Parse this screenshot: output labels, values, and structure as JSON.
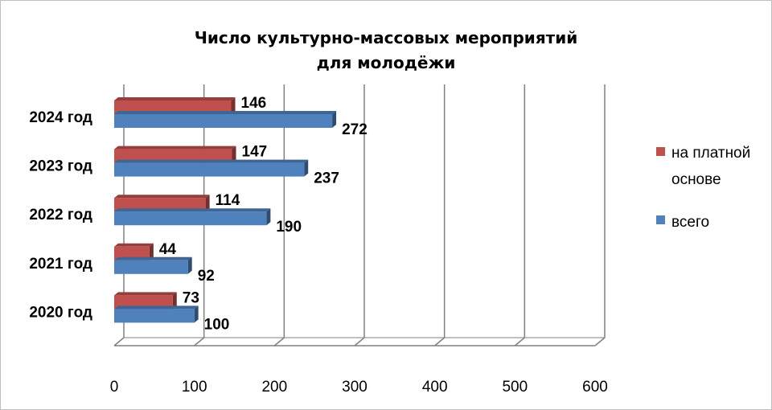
{
  "chart_data": {
    "type": "bar",
    "orientation": "horizontal",
    "title": [
      "Число культурно-массовых мероприятий",
      "для молодёжи"
    ],
    "categories": [
      "2020 год",
      "2021 год",
      "2022 год",
      "2023 год",
      "2024 год"
    ],
    "series": [
      {
        "name": "на платной основе",
        "values": [
          73,
          44,
          114,
          147,
          146
        ]
      },
      {
        "name": "всего",
        "values": [
          100,
          92,
          190,
          237,
          272
        ]
      }
    ],
    "xlim": [
      0,
      600
    ],
    "ticks": [
      0,
      100,
      200,
      300,
      400,
      500,
      600
    ],
    "grid": true,
    "legend": {
      "position": "right",
      "entries": [
        "на платной",
        "основе",
        "всего"
      ]
    },
    "colors": {
      "paid": "#c0504d",
      "total": "#4f81bd"
    }
  }
}
